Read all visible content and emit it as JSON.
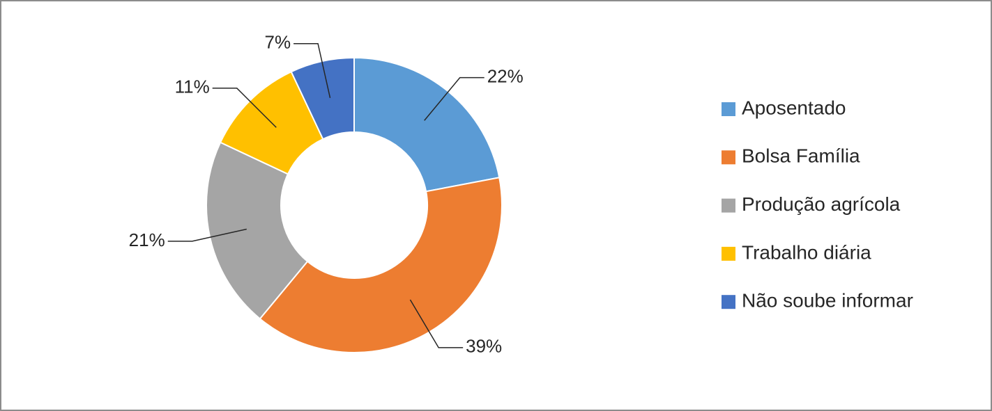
{
  "chart_data": {
    "type": "donut",
    "categories": [
      "Aposentado",
      "Bolsa Família",
      "Produção agrícola",
      "Trabalho diária",
      "Não soube informar"
    ],
    "values": [
      22,
      39,
      21,
      11,
      7
    ],
    "value_labels": [
      "22%",
      "39%",
      "21%",
      "11%",
      "7%"
    ],
    "colors": [
      "#5b9bd5",
      "#ed7d31",
      "#a5a5a5",
      "#ffc000",
      "#4472c4"
    ],
    "legend": "right"
  }
}
